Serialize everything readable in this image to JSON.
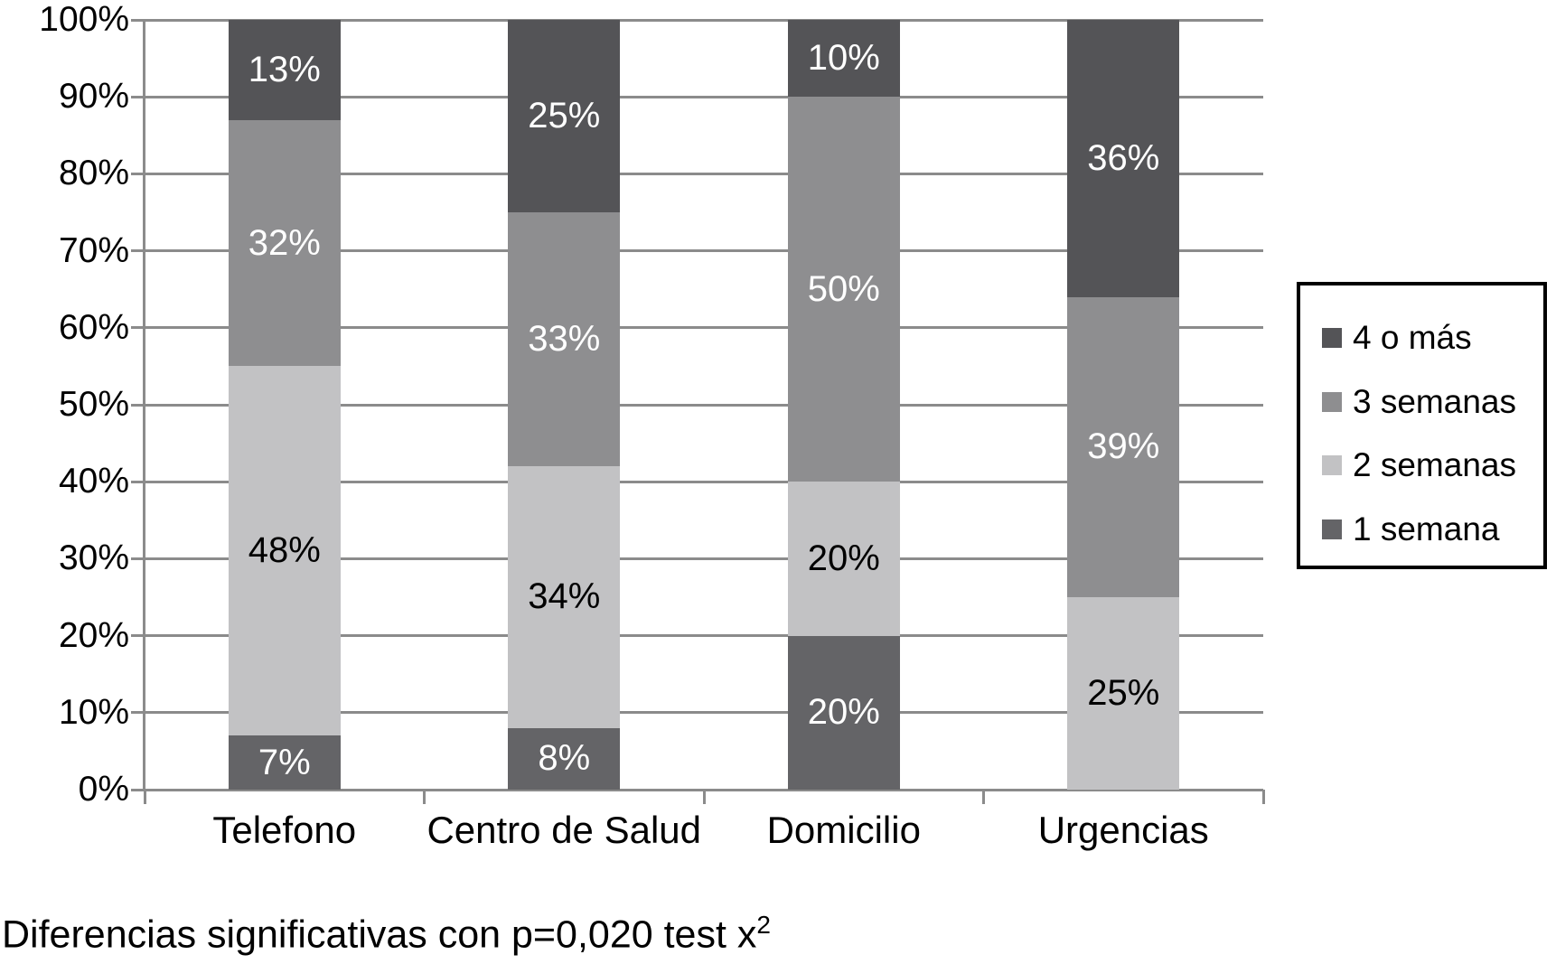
{
  "chart_data": {
    "type": "bar",
    "stacked": true,
    "percent_stacked": true,
    "categories": [
      "Telefono",
      "Centro de Salud",
      "Domicilio",
      "Urgencias"
    ],
    "series": [
      {
        "name": "1 semana",
        "values": [
          7,
          8,
          20,
          0
        ],
        "color": "#646467",
        "label_color": "#ffffff"
      },
      {
        "name": "2 semanas",
        "values": [
          48,
          34,
          20,
          25
        ],
        "color": "#c2c2c4",
        "label_color": "#000000"
      },
      {
        "name": "3 semanas",
        "values": [
          32,
          33,
          50,
          39
        ],
        "color": "#8e8e90",
        "label_color": "#ffffff"
      },
      {
        "name": "4 o más",
        "values": [
          13,
          25,
          10,
          36
        ],
        "color": "#545457",
        "label_color": "#ffffff"
      }
    ],
    "data_label_suffix": "%",
    "legend_order": [
      "4 o más",
      "3 semanas",
      "2 semanas",
      "1 semana"
    ],
    "legend_position": "right",
    "y_ticks": [
      "0%",
      "10%",
      "20%",
      "30%",
      "40%",
      "50%",
      "60%",
      "70%",
      "80%",
      "90%",
      "100%"
    ],
    "ylim": [
      0,
      100
    ],
    "grid": true,
    "title": "",
    "xlabel": "",
    "ylabel": "",
    "caption": {
      "text": "Diferencias significativas con p=0,020 test x",
      "sup": "2"
    }
  },
  "colors": {
    "grid": "#8b8b8b",
    "axis": "#8b8b8b",
    "tick": "#8b8b8b",
    "text": "#000000",
    "background": "#ffffff",
    "legend_border": "#000000"
  }
}
